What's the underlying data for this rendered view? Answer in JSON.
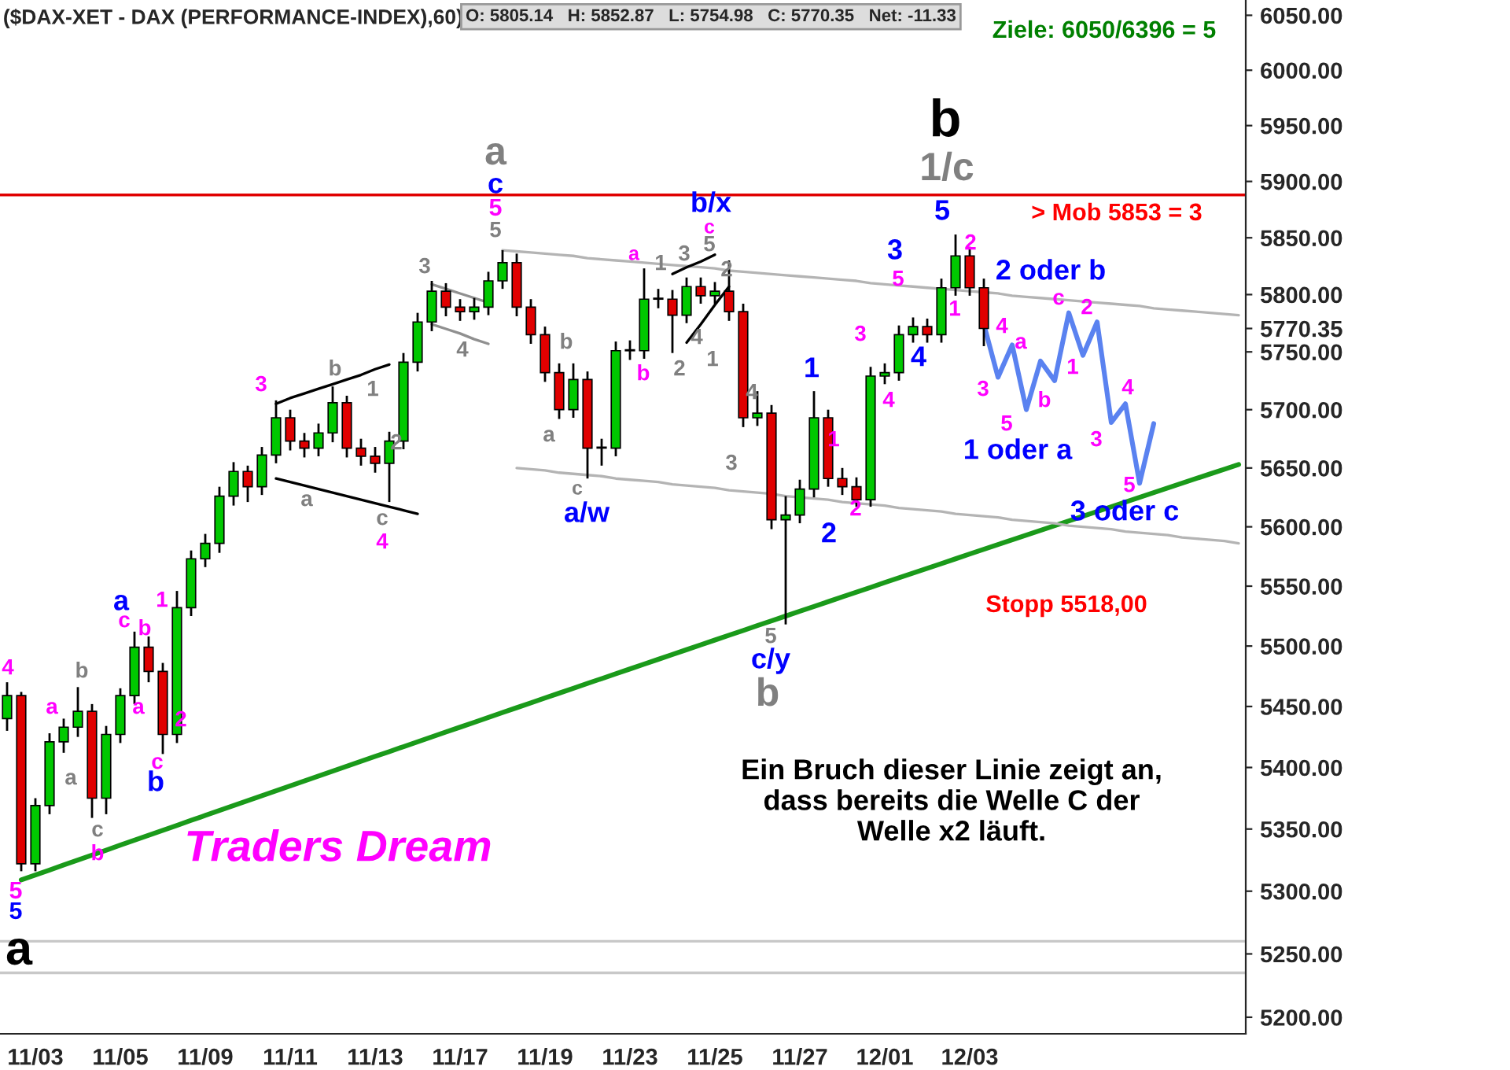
{
  "chart_data": {
    "type": "candlestick",
    "title": "($DAX-XET - DAX (PERFORMANCE-INDEX),60)",
    "subtitle": "O: 5805.14   H: 5852.87   L: 5754.98   C: 5770.35   Net: -11.33",
    "categories": [
      null,
      null,
      "11/03",
      null,
      null,
      null,
      null,
      null,
      "11/05",
      null,
      null,
      null,
      null,
      null,
      "11/09",
      null,
      null,
      null,
      null,
      null,
      "11/11",
      null,
      null,
      null,
      null,
      null,
      "11/13",
      null,
      null,
      null,
      null,
      null,
      "11/17",
      null,
      null,
      null,
      null,
      null,
      "11/19",
      null,
      null,
      null,
      null,
      null,
      "11/23",
      null,
      null,
      null,
      null,
      null,
      "11/25",
      null,
      null,
      null,
      null,
      null,
      "11/27",
      null,
      null,
      null,
      null,
      null,
      "12/01",
      null,
      null,
      null,
      null,
      null,
      "12/03",
      null,
      null,
      null,
      null,
      null,
      null,
      null,
      null,
      null,
      null,
      null,
      null,
      null,
      null,
      null,
      null,
      null,
      null,
      null
    ],
    "ohlc": [
      [
        5440,
        5470,
        5430,
        5459
      ],
      [
        5459,
        5462,
        5316,
        5322
      ],
      [
        5322,
        5375,
        5316,
        5369
      ],
      [
        5369,
        5428,
        5362,
        5421
      ],
      [
        5421,
        5440,
        5412,
        5433
      ],
      [
        5433,
        5466,
        5425,
        5446
      ],
      [
        5446,
        5452,
        5359,
        5375
      ],
      [
        5375,
        5434,
        5362,
        5427
      ],
      [
        5427,
        5465,
        5420,
        5459
      ],
      [
        5459,
        5512,
        5452,
        5499
      ],
      [
        5499,
        5508,
        5470,
        5479
      ],
      [
        5479,
        5486,
        5411,
        5427
      ],
      [
        5427,
        5546,
        5420,
        5532
      ],
      [
        5532,
        5580,
        5525,
        5573
      ],
      [
        5573,
        5594,
        5566,
        5586
      ],
      [
        5586,
        5634,
        5578,
        5626
      ],
      [
        5626,
        5655,
        5618,
        5647
      ],
      [
        5647,
        5652,
        5621,
        5634
      ],
      [
        5634,
        5668,
        5627,
        5661
      ],
      [
        5661,
        5708,
        5654,
        5693
      ],
      [
        5693,
        5700,
        5665,
        5673
      ],
      [
        5673,
        5680,
        5659,
        5667
      ],
      [
        5667,
        5688,
        5660,
        5680
      ],
      [
        5680,
        5720,
        5672,
        5706
      ],
      [
        5706,
        5712,
        5659,
        5667
      ],
      [
        5667,
        5675,
        5652,
        5660
      ],
      [
        5660,
        5668,
        5646,
        5654
      ],
      [
        5654,
        5681,
        5621,
        5673
      ],
      [
        5673,
        5749,
        5666,
        5741
      ],
      [
        5741,
        5784,
        5733,
        5776
      ],
      [
        5776,
        5812,
        5768,
        5803
      ],
      [
        5803,
        5810,
        5781,
        5789
      ],
      [
        5789,
        5796,
        5777,
        5785
      ],
      [
        5785,
        5797,
        5778,
        5789
      ],
      [
        5789,
        5820,
        5782,
        5812
      ],
      [
        5812,
        5839,
        5805,
        5828
      ],
      [
        5828,
        5836,
        5781,
        5789
      ],
      [
        5789,
        5796,
        5757,
        5765
      ],
      [
        5765,
        5772,
        5724,
        5732
      ],
      [
        5732,
        5740,
        5692,
        5700
      ],
      [
        5700,
        5740,
        5693,
        5726
      ],
      [
        5726,
        5733,
        5641,
        5667
      ],
      [
        5667,
        5675,
        5652,
        5667
      ],
      [
        5667,
        5759,
        5660,
        5751
      ],
      [
        5751,
        5760,
        5743,
        5751
      ],
      [
        5751,
        5823,
        5744,
        5796
      ],
      [
        5796,
        5805,
        5788,
        5796
      ],
      [
        5796,
        5804,
        5749,
        5782
      ],
      [
        5782,
        5815,
        5775,
        5807
      ],
      [
        5807,
        5815,
        5792,
        5799
      ],
      [
        5799,
        5811,
        5792,
        5803
      ],
      [
        5803,
        5830,
        5777,
        5785
      ],
      [
        5785,
        5792,
        5685,
        5693
      ],
      [
        5693,
        5716,
        5686,
        5697
      ],
      [
        5697,
        5704,
        5598,
        5606
      ],
      [
        5606,
        5626,
        5518,
        5610
      ],
      [
        5610,
        5640,
        5603,
        5632
      ],
      [
        5632,
        5716,
        5625,
        5693
      ],
      [
        5693,
        5700,
        5634,
        5641
      ],
      [
        5641,
        5650,
        5627,
        5634
      ],
      [
        5634,
        5642,
        5617,
        5623
      ],
      [
        5623,
        5737,
        5617,
        5729
      ],
      [
        5729,
        5740,
        5722,
        5732
      ],
      [
        5732,
        5773,
        5725,
        5765
      ],
      [
        5765,
        5780,
        5758,
        5772
      ],
      [
        5772,
        5779,
        5758,
        5765
      ],
      [
        5765,
        5814,
        5758,
        5806
      ],
      [
        5806,
        5852.87,
        5799,
        5834
      ],
      [
        5834,
        5842,
        5799,
        5806
      ],
      [
        5806,
        5814,
        5754.98,
        5770.35
      ],
      null,
      null,
      null,
      null,
      null,
      null,
      null,
      null,
      null,
      null,
      null,
      null,
      null,
      null,
      null,
      null,
      null,
      null
    ],
    "series": [
      {
        "type": "line",
        "color": "#5a82f0",
        "values": [
          null,
          null,
          null,
          null,
          null,
          null,
          null,
          null,
          null,
          null,
          null,
          null,
          null,
          null,
          null,
          null,
          null,
          null,
          null,
          null,
          null,
          null,
          null,
          null,
          null,
          null,
          null,
          null,
          null,
          null,
          null,
          null,
          null,
          null,
          null,
          null,
          null,
          null,
          null,
          null,
          null,
          null,
          null,
          null,
          null,
          null,
          null,
          null,
          null,
          null,
          null,
          null,
          null,
          null,
          null,
          null,
          null,
          null,
          null,
          null,
          null,
          null,
          null,
          null,
          null,
          null,
          null,
          null,
          null,
          5774,
          5728,
          5756,
          5700,
          5742,
          5725,
          5784,
          5747,
          5776,
          5689,
          5705,
          5637,
          5688,
          null,
          null,
          null,
          null,
          null,
          null
        ]
      },
      {
        "type": "line",
        "color": "#1a9a1a",
        "values": [
          null,
          5309,
          5313,
          5317,
          5321,
          5325,
          5329,
          5333,
          5337,
          5341,
          5345,
          5349,
          5353,
          5357,
          5361,
          5365,
          5369,
          5373,
          5377,
          5381,
          5385,
          5389,
          5393,
          5397,
          5401,
          5405,
          5409,
          5413,
          5417,
          5421,
          5425,
          5429,
          5433,
          5437,
          5441,
          5445,
          5449,
          5453,
          5457,
          5461,
          5465,
          5469,
          5473,
          5477,
          5481,
          5485,
          5489,
          5493,
          5497,
          5501,
          5505,
          5509,
          5513,
          5517,
          5521,
          5525,
          5529,
          5533,
          5537,
          5541,
          5545,
          5549,
          5553,
          5557,
          5561,
          5565,
          5569,
          5573,
          5577,
          5581,
          5585,
          5589,
          5593,
          5597,
          5601,
          5605,
          5609,
          5613,
          5617,
          5621,
          5625,
          5629,
          5633,
          5637,
          5641,
          5645,
          5649,
          5653
        ]
      },
      {
        "type": "line",
        "color": "#b4b4b4",
        "values": [
          null,
          null,
          null,
          null,
          null,
          null,
          null,
          null,
          null,
          null,
          null,
          null,
          null,
          null,
          null,
          null,
          null,
          null,
          null,
          null,
          null,
          null,
          null,
          null,
          null,
          null,
          null,
          null,
          null,
          null,
          null,
          null,
          null,
          null,
          null,
          5839,
          5838,
          5837,
          5836,
          5835,
          5834,
          5832,
          5831,
          5830,
          5829,
          5828,
          5827,
          5826,
          5825,
          5824,
          5823,
          5821,
          5820,
          5819,
          5818,
          5817,
          5816,
          5815,
          5814,
          5813,
          5812,
          5810,
          5809,
          5808,
          5807,
          5806,
          5805,
          5804,
          5803,
          5802,
          5801,
          5799,
          5798,
          5797,
          5796,
          5795,
          5794,
          5793,
          5792,
          5791,
          5790,
          5788,
          5787,
          5786,
          5785,
          5784,
          5783,
          5782
        ]
      },
      {
        "type": "line",
        "color": "#b4b4b4",
        "values": [
          null,
          null,
          null,
          null,
          null,
          null,
          null,
          null,
          null,
          null,
          null,
          null,
          null,
          null,
          null,
          null,
          null,
          null,
          null,
          null,
          null,
          null,
          null,
          null,
          null,
          null,
          null,
          null,
          null,
          null,
          null,
          null,
          null,
          null,
          null,
          null,
          5650,
          5649,
          5648,
          5646,
          5645,
          5644,
          5643,
          5641,
          5640,
          5639,
          5638,
          5636,
          5635,
          5634,
          5633,
          5631,
          5630,
          5629,
          5628,
          5626,
          5625,
          5624,
          5623,
          5621,
          5620,
          5619,
          5618,
          5616,
          5615,
          5614,
          5613,
          5611,
          5610,
          5609,
          5608,
          5606,
          5605,
          5604,
          5603,
          5601,
          5600,
          5599,
          5598,
          5596,
          5595,
          5594,
          5593,
          5591,
          5590,
          5589,
          5588,
          5586
        ]
      },
      {
        "type": "line",
        "color": "#000000",
        "values": [
          null,
          null,
          null,
          null,
          null,
          null,
          null,
          null,
          null,
          null,
          null,
          null,
          null,
          null,
          null,
          null,
          null,
          null,
          null,
          5705,
          5710,
          5714,
          5718,
          5722,
          5726,
          5730,
          5735,
          5739,
          null,
          null,
          null,
          null,
          null,
          null,
          null,
          null,
          null,
          null,
          null,
          null,
          null,
          null,
          null,
          null,
          null,
          null,
          null,
          null,
          null,
          null,
          null,
          null,
          null,
          null,
          null,
          null,
          null,
          null,
          null,
          null,
          null,
          null,
          null,
          null,
          null,
          null,
          null,
          null,
          null,
          null,
          null,
          null,
          null,
          null,
          null,
          null,
          null,
          null,
          null,
          null,
          null,
          null,
          null,
          null,
          null,
          null,
          null,
          null
        ]
      },
      {
        "type": "line",
        "color": "#000000",
        "values": [
          null,
          null,
          null,
          null,
          null,
          null,
          null,
          null,
          null,
          null,
          null,
          null,
          null,
          null,
          null,
          null,
          null,
          null,
          null,
          5641,
          5638,
          5635,
          5632,
          5629,
          5626,
          5623,
          5620,
          5617,
          5614,
          5611,
          null,
          null,
          null,
          null,
          null,
          null,
          null,
          null,
          null,
          null,
          null,
          null,
          null,
          null,
          null,
          null,
          null,
          null,
          null,
          null,
          null,
          null,
          null,
          null,
          null,
          null,
          null,
          null,
          null,
          null,
          null,
          null,
          null,
          null,
          null,
          null,
          null,
          null,
          null,
          null,
          null,
          null,
          null,
          null,
          null,
          null,
          null,
          null,
          null,
          null,
          null,
          null,
          null,
          null,
          null,
          null,
          null,
          null
        ]
      },
      {
        "type": "line",
        "color": "#909090",
        "values": [
          null,
          null,
          null,
          null,
          null,
          null,
          null,
          null,
          null,
          null,
          null,
          null,
          null,
          null,
          null,
          null,
          null,
          null,
          null,
          null,
          null,
          null,
          null,
          null,
          null,
          null,
          null,
          null,
          null,
          null,
          5809,
          5805,
          5801,
          5797,
          5793,
          null,
          null,
          null,
          null,
          null,
          null,
          null,
          null,
          null,
          null,
          null,
          null,
          null,
          null,
          null,
          null,
          null,
          null,
          null,
          null,
          null,
          null,
          null,
          null,
          null,
          null,
          null,
          null,
          null,
          null,
          null,
          null,
          null,
          null,
          null,
          null,
          null,
          null,
          null,
          null,
          null,
          null,
          null,
          null,
          null,
          null,
          null,
          null,
          null,
          null,
          null,
          null,
          null
        ]
      },
      {
        "type": "line",
        "color": "#909090",
        "values": [
          null,
          null,
          null,
          null,
          null,
          null,
          null,
          null,
          null,
          null,
          null,
          null,
          null,
          null,
          null,
          null,
          null,
          null,
          null,
          null,
          null,
          null,
          null,
          null,
          null,
          null,
          null,
          null,
          null,
          null,
          5774,
          5770,
          5766,
          5761,
          5757,
          null,
          null,
          null,
          null,
          null,
          null,
          null,
          null,
          null,
          null,
          null,
          null,
          null,
          null,
          null,
          null,
          null,
          null,
          null,
          null,
          null,
          null,
          null,
          null,
          null,
          null,
          null,
          null,
          null,
          null,
          null,
          null,
          null,
          null,
          null,
          null,
          null,
          null,
          null,
          null,
          null,
          null,
          null,
          null,
          null,
          null,
          null,
          null,
          null,
          null,
          null,
          null,
          null
        ]
      },
      {
        "type": "line",
        "color": "#000000",
        "values": [
          null,
          null,
          null,
          null,
          null,
          null,
          null,
          null,
          null,
          null,
          null,
          null,
          null,
          null,
          null,
          null,
          null,
          null,
          null,
          null,
          null,
          null,
          null,
          null,
          null,
          null,
          null,
          null,
          null,
          null,
          null,
          null,
          null,
          null,
          null,
          null,
          null,
          null,
          null,
          null,
          null,
          null,
          null,
          null,
          null,
          null,
          null,
          5818,
          5824,
          5829,
          5835,
          null,
          null,
          null,
          null,
          null,
          null,
          null,
          null,
          null,
          null,
          null,
          null,
          null,
          null,
          null,
          null,
          null,
          null,
          null,
          null,
          null,
          null,
          null,
          null,
          null,
          null,
          null,
          null,
          null,
          null,
          null,
          null,
          null,
          null,
          null,
          null,
          null
        ]
      },
      {
        "type": "line",
        "color": "#000000",
        "values": [
          null,
          null,
          null,
          null,
          null,
          null,
          null,
          null,
          null,
          null,
          null,
          null,
          null,
          null,
          null,
          null,
          null,
          null,
          null,
          null,
          null,
          null,
          null,
          null,
          null,
          null,
          null,
          null,
          null,
          null,
          null,
          null,
          null,
          null,
          null,
          null,
          null,
          null,
          null,
          null,
          null,
          null,
          null,
          null,
          null,
          null,
          null,
          null,
          5758,
          5774,
          5791,
          5807,
          null,
          null,
          null,
          null,
          null,
          null,
          null,
          null,
          null,
          null,
          null,
          null,
          null,
          null,
          null,
          null,
          null,
          null,
          null,
          null,
          null,
          null,
          null,
          null,
          null,
          null,
          null,
          null,
          null,
          null,
          null,
          null,
          null,
          null,
          null,
          null
        ]
      }
    ],
    "ref_lines": [
      {
        "axis": "y",
        "value": 5888,
        "color": "#e00000"
      },
      {
        "axis": "y",
        "value": 5260,
        "color": "#c8c8c8"
      },
      {
        "axis": "y",
        "value": 5235,
        "color": "#c8c8c8"
      }
    ],
    "log": true,
    "ylim": [
      5187,
      6064
    ],
    "yticks": [
      {
        "value": 5200,
        "label": "5200.00"
      },
      {
        "value": 5250,
        "label": "5250.00"
      },
      {
        "value": 5300,
        "label": "5300.00"
      },
      {
        "value": 5350,
        "label": "5350.00"
      },
      {
        "value": 5400,
        "label": "5400.00"
      },
      {
        "value": 5450,
        "label": "5450.00"
      },
      {
        "value": 5500,
        "label": "5500.00"
      },
      {
        "value": 5550,
        "label": "5550.00"
      },
      {
        "value": 5600,
        "label": "5600.00"
      },
      {
        "value": 5650,
        "label": "5650.00"
      },
      {
        "value": 5700,
        "label": "5700.00"
      },
      {
        "value": 5750,
        "label": "5750.00"
      },
      {
        "value": 5770.35,
        "label": "5770.35"
      },
      {
        "value": 5800,
        "label": "5800.00"
      },
      {
        "value": 5850,
        "label": "5850.00"
      },
      {
        "value": 5900,
        "label": "5900.00"
      },
      {
        "value": 5950,
        "label": "5950.00"
      },
      {
        "value": 6000,
        "label": "6000.00"
      },
      {
        "value": 6050,
        "label": "6050.00"
      }
    ],
    "grid": false,
    "legend": false,
    "annotations": [
      "4",
      "5",
      "5",
      "a",
      "a",
      "a",
      "b",
      "c",
      "b",
      "a",
      "c",
      "b",
      "a",
      "1",
      "2",
      "c",
      "b",
      "Traders Dream",
      "3",
      "b",
      "1",
      "2",
      "a",
      "c",
      "4",
      "3",
      "4",
      "5",
      "5",
      "c",
      "a",
      "b",
      "a",
      "c",
      "a/w",
      "a",
      "b",
      "1",
      "3",
      "2",
      "4",
      "5",
      "c",
      "b/x",
      "2",
      "1",
      "3",
      "4",
      "5",
      "c/y",
      "b",
      "1",
      "1",
      "2",
      "2",
      "3",
      "4",
      "5",
      "3",
      "4",
      "b",
      "1/c",
      "5",
      "2",
      "1",
      "4",
      "3",
      "a",
      "5",
      "b",
      "c",
      "2",
      "1",
      "3",
      "4",
      "5",
      "2 oder b",
      "1 oder a",
      "3 oder c",
      "Ziele: 6050/6396 = 5",
      "> Mob 5853 = 3",
      "Stopp 5518,00",
      "Ein Bruch dieser Linie zeigt an,\ndass bereits die Welle C der\nWelle x2 läuft."
    ]
  }
}
